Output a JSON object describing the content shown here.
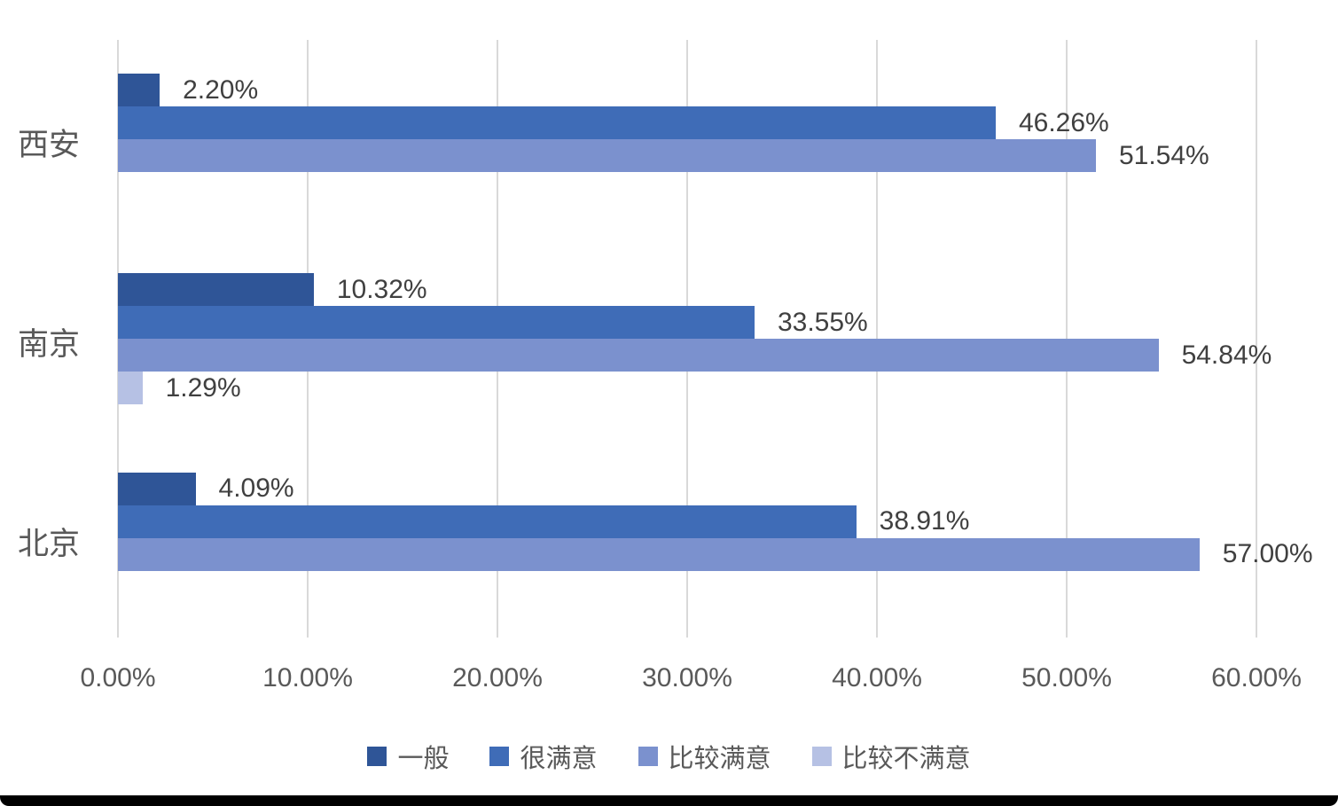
{
  "chart_data": {
    "type": "bar",
    "orientation": "horizontal",
    "title": "",
    "categories": [
      "西安",
      "南京",
      "北京"
    ],
    "series": [
      {
        "name": "一般",
        "color": "#2F5597",
        "values": [
          2.2,
          10.32,
          4.09
        ],
        "labels": [
          "2.20%",
          "10.32%",
          "4.09%"
        ]
      },
      {
        "name": "很满意",
        "color": "#3F6CB7",
        "values": [
          46.26,
          33.55,
          38.91
        ],
        "labels": [
          "46.26%",
          "33.55%",
          "38.91%"
        ]
      },
      {
        "name": "比较满意",
        "color": "#7B91CE",
        "values": [
          51.54,
          54.84,
          57.0
        ],
        "labels": [
          "51.54%",
          "54.84%",
          "57.00%"
        ]
      },
      {
        "name": "比较不满意",
        "color": "#B6C1E4",
        "values": [
          null,
          1.29,
          null
        ],
        "labels": [
          null,
          "1.29%",
          null
        ]
      }
    ],
    "x_axis": {
      "min": 0,
      "max": 60,
      "tick_labels": [
        "0.00%",
        "10.00%",
        "20.00%",
        "30.00%",
        "40.00%",
        "50.00%",
        "60.00%"
      ]
    },
    "legend": {
      "position": "bottom",
      "entries": [
        "一般",
        "很满意",
        "比较满意",
        "比较不满意"
      ]
    },
    "grid": true,
    "gridline_color": "#D9D9D9",
    "data_label_color": "#404040",
    "axis_text_color": "#595959",
    "background_color": "#FFFFFF"
  }
}
